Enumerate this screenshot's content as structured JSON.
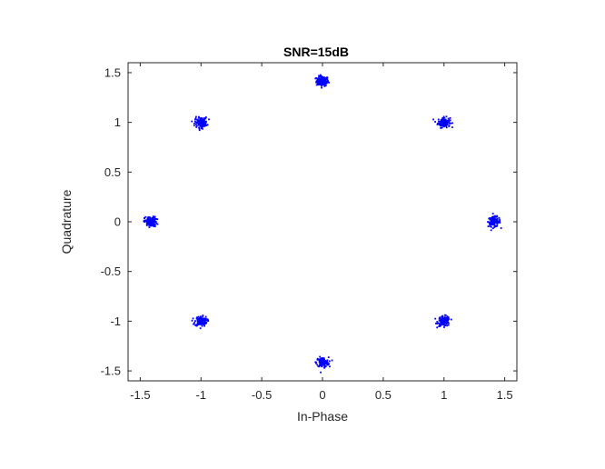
{
  "chart_data": {
    "type": "scatter",
    "title": "SNR=15dB",
    "xlabel": "In-Phase",
    "ylabel": "Quadrature",
    "xlim": [
      -1.6,
      1.6
    ],
    "ylim": [
      -1.6,
      1.6
    ],
    "xticks": [
      -1.5,
      -1,
      -0.5,
      0,
      0.5,
      1,
      1.5
    ],
    "xtick_labels": [
      "-1.5",
      "-1",
      "-0.5",
      "0",
      "0.5",
      "1",
      "1.5"
    ],
    "yticks": [
      -1.5,
      -1,
      -0.5,
      0,
      0.5,
      1,
      1.5
    ],
    "ytick_labels": [
      "-1.5",
      "-1",
      "-0.5",
      "0",
      "0.5",
      "1",
      "1.5"
    ],
    "grid": false,
    "legend": "none",
    "marker_color": "#0000ff",
    "axis_color": "#262626",
    "constellation_points": [
      {
        "x": 0,
        "y": 1.414
      },
      {
        "x": 1,
        "y": 1
      },
      {
        "x": 1.414,
        "y": 0
      },
      {
        "x": 1,
        "y": -1
      },
      {
        "x": 0,
        "y": -1.414
      },
      {
        "x": -1,
        "y": -1
      },
      {
        "x": -1.414,
        "y": 0
      },
      {
        "x": -1,
        "y": 1
      }
    ],
    "noise_spread": 0.025
  }
}
